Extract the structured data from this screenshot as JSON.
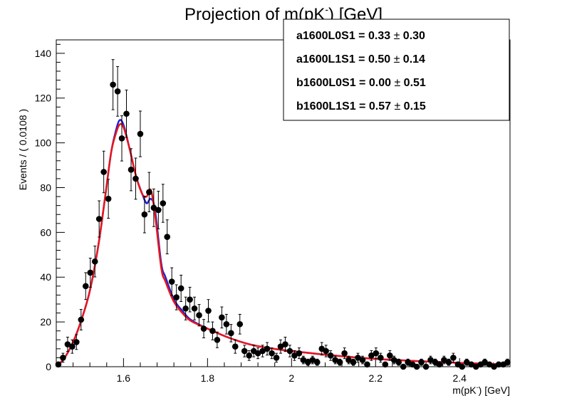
{
  "chart_data": {
    "type": "scatter",
    "title": "Projection of m(pK",
    "title_sup": "-",
    "title_tail": ") [GeV]",
    "xlabel": "m(pK",
    "xlabel_sup": "-",
    "xlabel_tail": ") [GeV]",
    "ylabel": "Events / ( 0.0108 )",
    "xlim": [
      1.44,
      2.52
    ],
    "ylim": [
      0,
      146
    ],
    "x_ticks": [
      "1.6",
      "1.8",
      "2",
      "2.2",
      "2.4"
    ],
    "x_tick_values": [
      1.6,
      1.8,
      2.0,
      2.2,
      2.4
    ],
    "y_ticks": [
      "0",
      "20",
      "40",
      "60",
      "80",
      "100",
      "120",
      "140"
    ],
    "y_tick_values": [
      0,
      20,
      40,
      60,
      80,
      100,
      120,
      140
    ],
    "stats_box": [
      {
        "name": "a1600L0S1 = ",
        "value": "0.33",
        "pm": "±",
        "err": "0.30"
      },
      {
        "name": "a1600L1S1 = ",
        "value": "0.50",
        "pm": "±",
        "err": "0.14"
      },
      {
        "name": "b1600L0S1 = ",
        "value": "0.00",
        "pm": "±",
        "err": "0.51"
      },
      {
        "name": "b1600L1S1 = ",
        "value": "0.57",
        "pm": "±",
        "err": "0.15"
      }
    ],
    "data_points": {
      "x": [
        1.445,
        1.456,
        1.467,
        1.478,
        1.488,
        1.499,
        1.51,
        1.521,
        1.532,
        1.542,
        1.553,
        1.564,
        1.575,
        1.586,
        1.596,
        1.607,
        1.618,
        1.629,
        1.64,
        1.65,
        1.661,
        1.672,
        1.683,
        1.694,
        1.704,
        1.715,
        1.726,
        1.737,
        1.748,
        1.758,
        1.769,
        1.78,
        1.791,
        1.802,
        1.812,
        1.823,
        1.834,
        1.845,
        1.856,
        1.866,
        1.877,
        1.888,
        1.899,
        1.91,
        1.92,
        1.931,
        1.942,
        1.953,
        1.964,
        1.974,
        1.985,
        1.996,
        2.007,
        2.018,
        2.028,
        2.039,
        2.05,
        2.061,
        2.072,
        2.082,
        2.093,
        2.104,
        2.115,
        2.126,
        2.136,
        2.147,
        2.158,
        2.169,
        2.18,
        2.19,
        2.201,
        2.212,
        2.223,
        2.234,
        2.244,
        2.255,
        2.266,
        2.277,
        2.288,
        2.298,
        2.309,
        2.32,
        2.331,
        2.342,
        2.352,
        2.363,
        2.374,
        2.385,
        2.396,
        2.406,
        2.417,
        2.428,
        2.439,
        2.45,
        2.46,
        2.471,
        2.482,
        2.493,
        2.504,
        2.514
      ],
      "y": [
        1,
        4,
        10,
        9,
        11,
        21,
        36,
        42,
        47,
        66,
        87,
        75,
        126,
        123,
        102,
        113,
        88,
        84,
        104,
        68,
        78,
        71,
        70,
        73,
        58,
        38,
        31,
        35,
        26,
        30,
        26,
        23,
        17,
        25,
        16,
        12,
        22,
        19,
        15,
        9,
        19,
        7,
        5,
        7,
        6,
        7,
        8,
        6,
        4,
        9,
        10,
        7,
        5,
        6,
        3,
        2,
        3,
        2,
        8,
        7,
        5,
        3,
        2,
        6,
        3,
        2,
        4,
        3,
        1,
        5,
        6,
        4,
        1,
        5,
        3,
        2,
        0,
        2,
        1,
        0,
        2,
        0,
        3,
        2,
        1,
        3,
        2,
        4,
        1,
        0,
        2,
        1,
        0,
        1,
        2,
        1,
        0,
        1,
        1,
        2
      ],
      "err": [
        1,
        2,
        3.2,
        3,
        3.3,
        4.6,
        6,
        6.5,
        6.9,
        8.1,
        9.3,
        8.7,
        11.2,
        11.1,
        10.1,
        10.6,
        9.4,
        9.2,
        10.2,
        8.2,
        8.8,
        8.4,
        8.4,
        8.5,
        7.6,
        6.2,
        5.6,
        5.9,
        5.1,
        5.5,
        5.1,
        4.8,
        4.1,
        5,
        4,
        3.5,
        4.7,
        4.4,
        3.9,
        3,
        4.4,
        2.6,
        2.2,
        2.6,
        2.4,
        2.6,
        2.8,
        2.4,
        2,
        3,
        3.2,
        2.6,
        2.2,
        2.4,
        1.7,
        1.4,
        1.7,
        1.4,
        2.8,
        2.6,
        2.2,
        1.7,
        1.4,
        2.4,
        1.7,
        1.4,
        2,
        1.7,
        1,
        2.2,
        2.4,
        2,
        1,
        2.2,
        1.7,
        1.4,
        1,
        1.4,
        1,
        1,
        1.4,
        1,
        1.7,
        1.4,
        1,
        1.7,
        1.4,
        2,
        1,
        1,
        1.4,
        1,
        1,
        1,
        1.4,
        1,
        1,
        1,
        1,
        1.4
      ]
    },
    "curves": [
      {
        "color": "#1f1fd6",
        "x": [
          1.445,
          1.46,
          1.48,
          1.5,
          1.52,
          1.54,
          1.555,
          1.57,
          1.58,
          1.59,
          1.6,
          1.615,
          1.63,
          1.645,
          1.655,
          1.665,
          1.675,
          1.69,
          1.7,
          1.72,
          1.74,
          1.76,
          1.8,
          1.85,
          1.9,
          1.95,
          2.0,
          2.1,
          2.2,
          2.3,
          2.4,
          2.515
        ],
        "y": [
          1,
          4,
          11,
          21,
          34,
          54,
          74,
          95,
          104,
          110,
          108,
          97,
          85,
          77,
          73,
          75,
          70,
          46,
          40,
          30,
          25,
          21,
          17,
          13,
          10,
          8.2,
          7,
          5,
          3.5,
          2.5,
          1.7,
          1
        ]
      },
      {
        "color": "#e8151b",
        "x": [
          1.445,
          1.46,
          1.48,
          1.5,
          1.52,
          1.54,
          1.555,
          1.57,
          1.58,
          1.59,
          1.6,
          1.615,
          1.63,
          1.645,
          1.655,
          1.665,
          1.675,
          1.69,
          1.7,
          1.72,
          1.74,
          1.76,
          1.8,
          1.85,
          1.9,
          1.95,
          2.0,
          2.1,
          2.2,
          2.3,
          2.4,
          2.515
        ],
        "y": [
          1,
          4,
          11,
          21,
          34,
          54,
          74,
          95,
          103,
          108,
          107,
          97,
          85,
          77,
          76,
          79,
          68,
          44,
          38,
          29,
          24,
          20.5,
          17,
          13,
          10,
          8.2,
          7,
          5,
          3.5,
          2.5,
          1.7,
          1
        ]
      }
    ]
  }
}
